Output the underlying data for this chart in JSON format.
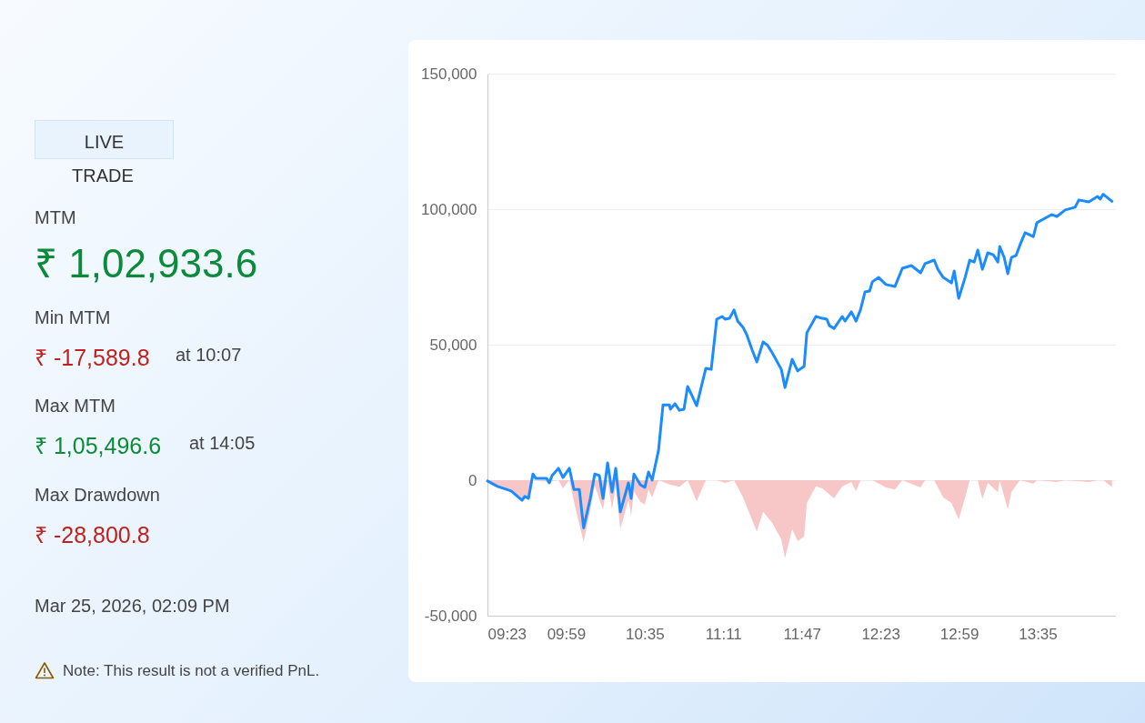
{
  "chart_data": {
    "type": "line",
    "annotations": [
      "LIVE",
      "TRADE",
      "MTM",
      "₹ 1,02,933.6",
      "Min MTM",
      "₹ -17,589.8",
      "at 10:07",
      "Max MTM",
      "₹ 1,05,496.6",
      "at 14:05",
      "Max Drawdown",
      "₹ -28,800.8",
      "Mar 25, 2026, 02:09 PM",
      "Note: This result is not a verified PnL."
    ],
    "xlim": [
      9.383,
      14.18
    ],
    "xticks": [
      {
        "value": 9.383,
        "label": "09:23"
      },
      {
        "value": 9.983,
        "label": "09:59"
      },
      {
        "value": 10.583,
        "label": "10:35"
      },
      {
        "value": 11.183,
        "label": "11:11"
      },
      {
        "value": 11.783,
        "label": "11:47"
      },
      {
        "value": 12.383,
        "label": "12:23"
      },
      {
        "value": 12.983,
        "label": "12:59"
      },
      {
        "value": 13.583,
        "label": "13:35"
      }
    ],
    "ylim": [
      -50000,
      150000
    ],
    "yticks": [
      {
        "value": -50000,
        "label": "-50,000"
      },
      {
        "value": 0,
        "label": "0"
      },
      {
        "value": 50000,
        "label": "50,000"
      },
      {
        "value": 100000,
        "label": "100,000"
      },
      {
        "value": 150000,
        "label": "150,000"
      }
    ],
    "grid": "y",
    "line_style": "solid",
    "marker": "none",
    "series": [
      {
        "type": "area",
        "color": "#f7c6c6",
        "x": [
          9.383,
          9.46,
          9.564,
          9.647,
          9.696,
          9.73,
          9.834,
          9.925,
          9.959,
          10.008,
          10.043,
          10.117,
          10.168,
          10.202,
          10.265,
          10.3,
          10.334,
          10.362,
          10.397,
          10.459,
          10.48,
          10.501,
          10.55,
          10.584,
          10.612,
          10.64,
          10.689,
          10.779,
          10.848,
          10.911,
          10.98,
          11.05,
          11.133,
          11.196,
          11.265,
          11.334,
          11.404,
          11.439,
          11.487,
          11.557,
          11.626,
          11.654,
          11.709,
          11.751,
          11.8,
          11.821,
          11.89,
          11.939,
          12.029,
          12.091,
          12.161,
          12.196,
          12.23,
          12.321,
          12.425,
          12.494,
          12.55,
          12.689,
          12.723,
          12.793,
          12.862,
          12.925,
          12.98,
          13.029,
          13.064,
          13.126,
          13.161,
          13.202,
          13.279,
          13.293,
          13.355,
          13.383,
          13.446,
          13.55,
          13.577,
          13.73,
          13.793,
          13.973,
          14.043,
          14.083,
          14.15
        ],
        "values": [
          0,
          -2000,
          -4000,
          -7000,
          -6700,
          0,
          -500,
          0,
          -3000,
          0,
          -8000,
          -22800,
          -11000,
          -2000,
          -11000,
          0,
          -10700,
          -2000,
          -18000,
          -7400,
          -13000,
          -4000,
          -8000,
          -9000,
          -3400,
          -6400,
          0,
          -1700,
          -2400,
          0,
          -7700,
          0,
          0,
          -1000,
          0,
          -6400,
          -14800,
          -19000,
          -11700,
          -15800,
          -21800,
          -28800,
          -18000,
          -22500,
          -20800,
          -8400,
          -2300,
          -3000,
          -6700,
          -2300,
          -700,
          -4000,
          0,
          0,
          -2700,
          -3400,
          0,
          -2700,
          0,
          0,
          -6400,
          -8400,
          -14400,
          -6400,
          0,
          0,
          -7000,
          -1000,
          -4400,
          0,
          -10700,
          -4400,
          0,
          -1300,
          0,
          -700,
          0,
          -700,
          0,
          0,
          -2500
        ]
      },
      {
        "color": "#1a8cff",
        "x": [
          9.383,
          9.46,
          9.529,
          9.564,
          9.647,
          9.668,
          9.696,
          9.73,
          9.751,
          9.834,
          9.855,
          9.876,
          9.925,
          9.959,
          10.008,
          10.043,
          10.084,
          10.117,
          10.168,
          10.202,
          10.237,
          10.265,
          10.3,
          10.334,
          10.362,
          10.397,
          10.459,
          10.48,
          10.501,
          10.55,
          10.584,
          10.612,
          10.64,
          10.689,
          10.723,
          10.772,
          10.779,
          10.814,
          10.848,
          10.883,
          10.911,
          10.98,
          11.05,
          11.091,
          11.133,
          11.175,
          11.196,
          11.23,
          11.265,
          11.293,
          11.334,
          11.362,
          11.404,
          11.439,
          11.487,
          11.522,
          11.557,
          11.626,
          11.654,
          11.709,
          11.751,
          11.8,
          11.821,
          11.89,
          11.939,
          11.973,
          11.994,
          12.029,
          12.091,
          12.112,
          12.161,
          12.196,
          12.23,
          12.265,
          12.3,
          12.321,
          12.369,
          12.425,
          12.494,
          12.55,
          12.619,
          12.689,
          12.723,
          12.793,
          12.821,
          12.862,
          12.925,
          12.946,
          12.98,
          13.029,
          13.064,
          13.098,
          13.126,
          13.161,
          13.202,
          13.244,
          13.279,
          13.293,
          13.327,
          13.355,
          13.383,
          13.418,
          13.446,
          13.487,
          13.55,
          13.577,
          13.626,
          13.689,
          13.73,
          13.793,
          13.869,
          13.897,
          13.973,
          14.04,
          14.06,
          14.083,
          14.15
        ],
        "values": [
          -300,
          -2300,
          -3400,
          -4000,
          -7400,
          -6000,
          -6700,
          2300,
          700,
          700,
          -1000,
          1700,
          4400,
          1000,
          4400,
          -3400,
          -3400,
          -17600,
          -6700,
          2300,
          1700,
          -6700,
          6400,
          -4400,
          4400,
          -11700,
          -1000,
          -6700,
          2300,
          -1700,
          -2700,
          3000,
          0,
          11100,
          27800,
          27800,
          26200,
          28200,
          25800,
          26200,
          34600,
          27500,
          41300,
          40900,
          59400,
          60400,
          59400,
          59700,
          62800,
          58700,
          56400,
          53700,
          48000,
          43600,
          51000,
          49700,
          47000,
          40900,
          34200,
          44600,
          40300,
          42000,
          54400,
          60400,
          59700,
          59400,
          57000,
          56000,
          60400,
          58700,
          62100,
          58700,
          62800,
          69500,
          69800,
          73200,
          74800,
          72200,
          71500,
          78200,
          79200,
          76500,
          79900,
          81200,
          77800,
          74800,
          72800,
          77200,
          67100,
          74800,
          81200,
          80500,
          84900,
          77800,
          83900,
          83200,
          80500,
          86200,
          82200,
          76200,
          82200,
          82900,
          86600,
          91300,
          89900,
          95000,
          96300,
          98000,
          97300,
          99700,
          100700,
          103400,
          102700,
          104700,
          103700,
          105500,
          102900
        ]
      }
    ]
  }
}
